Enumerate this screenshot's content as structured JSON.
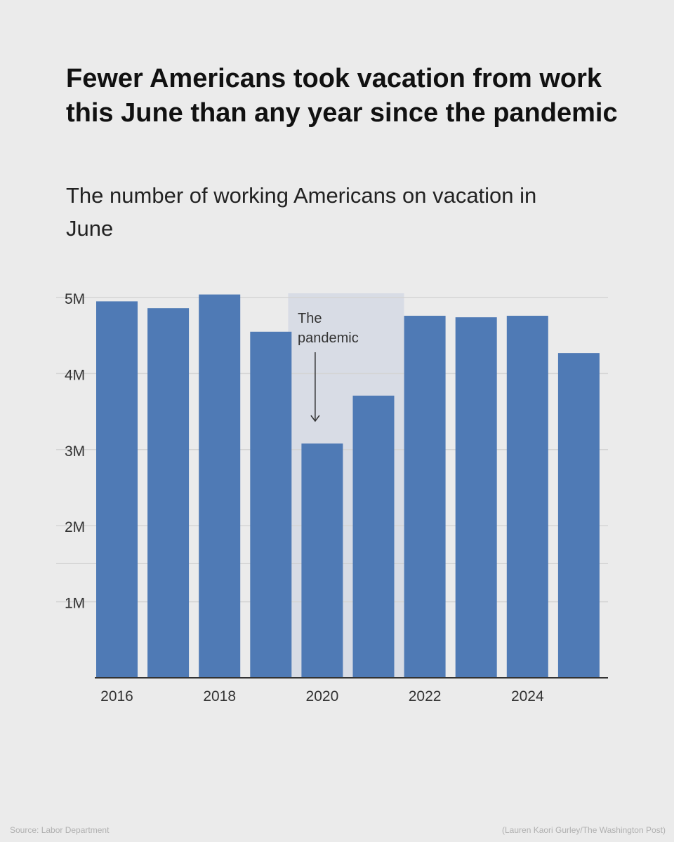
{
  "header": {
    "title": "Fewer Americans took vacation from work this June than any year since the pandemic",
    "subtitle": "The number of working Americans on vacation in June"
  },
  "footer": {
    "source": "Source: Labor Department",
    "credit": "(Lauren Kaori Gurley/The Washington Post)"
  },
  "colors": {
    "bar": "#4f7ab5",
    "highlight": "#d8dce5",
    "grid": "#d4d4d4",
    "axis": "#333333",
    "background": "#ebebeb"
  },
  "chart_data": {
    "type": "bar",
    "categories": [
      "2016",
      "2017",
      "2018",
      "2019",
      "2020",
      "2021",
      "2022",
      "2023",
      "2024",
      "2025"
    ],
    "values": [
      4.95,
      4.86,
      5.04,
      4.55,
      3.08,
      3.71,
      4.76,
      4.74,
      4.76,
      4.27
    ],
    "value_unit": "millions",
    "x_tick_labels": [
      "2016",
      "",
      "2018",
      "",
      "2020",
      "",
      "2022",
      "",
      "2024",
      ""
    ],
    "y_ticks": [
      1,
      2,
      3,
      4,
      5
    ],
    "y_tick_labels": [
      "1M",
      "2M",
      "3M",
      "4M",
      "5M"
    ],
    "ylim": [
      0,
      5
    ],
    "grid": true,
    "title": "",
    "xlabel": "",
    "ylabel": "",
    "highlight_range": [
      "2020",
      "2021"
    ],
    "annotation": {
      "lines": [
        "The",
        "pandemic"
      ],
      "target": "2020"
    }
  }
}
